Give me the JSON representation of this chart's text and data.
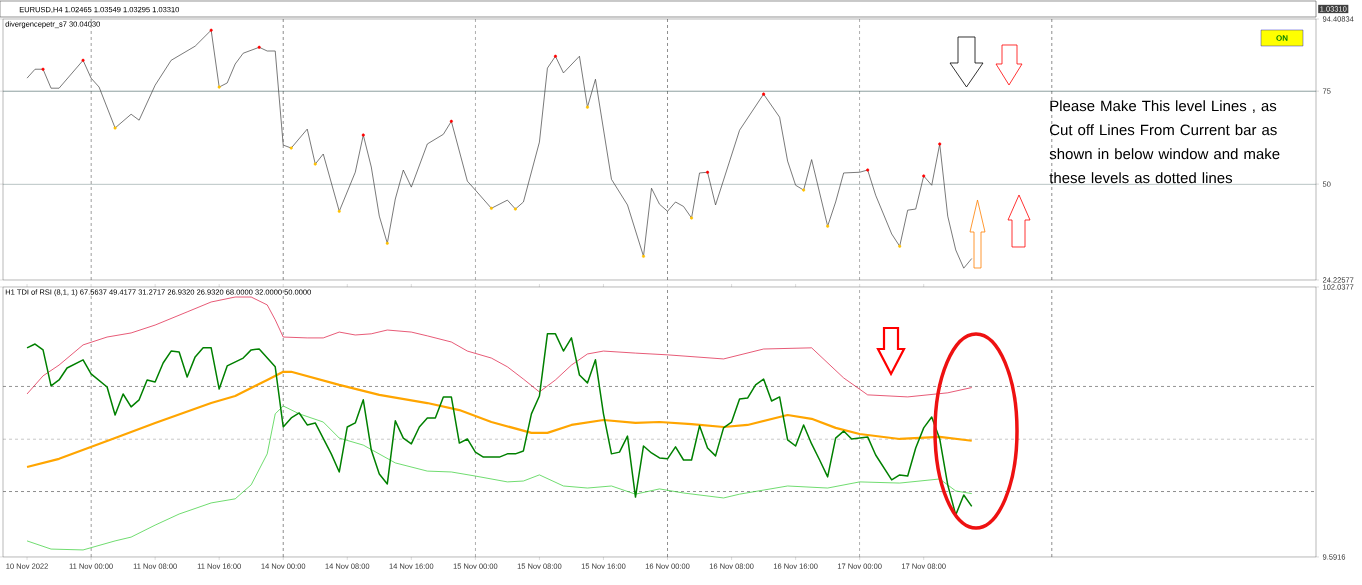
{
  "chart_data": [
    {
      "type": "line",
      "title": "divergencepetr_s7 30.04030",
      "annotations": [
        "EURUSD,H4 1.02465 1.03549 1.03295 1.03310",
        "1.03310",
        "ON",
        "Please Make This level Lines , as Cut off Lines From Current bar as shown in below window and make these levels as dotted lines"
      ],
      "categories": [
        null,
        null,
        null,
        null,
        null,
        null,
        null,
        null,
        null,
        null,
        null,
        null,
        null,
        null,
        null,
        null,
        null,
        null,
        null,
        null,
        null,
        null,
        null,
        null,
        null,
        null,
        null,
        null,
        null,
        null,
        null,
        null,
        null,
        null,
        null,
        null,
        null,
        null,
        null,
        null,
        null,
        null,
        null,
        null,
        null,
        null,
        null,
        null,
        null,
        null,
        null,
        null,
        null,
        null,
        null,
        null,
        null,
        null,
        null,
        null,
        null,
        null,
        null,
        null,
        null,
        null,
        null,
        null,
        null,
        null,
        null,
        null,
        null,
        null,
        null,
        null,
        null,
        null,
        null,
        null,
        null,
        null,
        null,
        null,
        null,
        null,
        null,
        null,
        null,
        null,
        null,
        null,
        null,
        null,
        null,
        null,
        null,
        null,
        null,
        null,
        null,
        null,
        null,
        null,
        null,
        null,
        null,
        null,
        null,
        null,
        null,
        null,
        null,
        null,
        null,
        null,
        null,
        null,
        null
      ],
      "ylim": [
        24.22577,
        94.40834
      ],
      "yticks": [
        24.22577,
        50,
        75,
        94.40834
      ],
      "tick_labels": "y",
      "grid": "x",
      "ref_lines": [
        {
          "axis": "y",
          "value": 75,
          "color": "#2f4f4f",
          "line_style": "solid"
        },
        {
          "axis": "y",
          "value": 50,
          "color": "#2f4f4f",
          "line_style": "solid"
        }
      ],
      "series": [
        {
          "marker": "none",
          "color": "#404040",
          "values": [
            78.5,
            80.9,
            80.9,
            75.8,
            75.8,
            null,
            null,
            83.3,
            78.5,
            76.1,
            null,
            65.1,
            null,
            68.8,
            67.2,
            null,
            76.6,
            null,
            83.3,
            null,
            null,
            87.1,
            null,
            91.4,
            76.1,
            77.2,
            82.3,
            85.2,
            null,
            86.8,
            85.8,
            85.8,
            60.5,
            59.7,
            null,
            64.8,
            55.4,
            58.1,
            null,
            42.7,
            null,
            53.2,
            63.2,
            54.6,
            41.4,
            34.1,
            46.0,
            53.8,
            49.2,
            null,
            60.8,
            null,
            63.4,
            66.9,
            null,
            50.8,
            48.4,
            null,
            43.5,
            null,
            45.7,
            43.3,
            45.2,
            null,
            61.3,
            81.2,
            84.4,
            79.9,
            null,
            84.4,
            70.7,
            78.2,
            null,
            51.3,
            null,
            44.4,
            null,
            30.6,
            48.9,
            44.6,
            42.7,
            45.2,
            44.0,
            40.9,
            53.0,
            53.2,
            44.4,
            null,
            null,
            64.5,
            null,
            null,
            74.2,
            null,
            68.0,
            56.2,
            49.7,
            48.4,
            56.6,
            null,
            38.7,
            45.2,
            53.0,
            null,
            53.2,
            53.8,
            47.0,
            null,
            36.6,
            33.3,
            43.0,
            43.3,
            52.2,
            49.7,
            60.8,
            41.4,
            32.3,
            27.4,
            30.0
          ]
        },
        {
          "type": "scatter",
          "marker": "circle",
          "color": "#ff0000",
          "values": [
            null,
            null,
            80.9,
            null,
            null,
            null,
            null,
            83.3,
            null,
            null,
            null,
            null,
            null,
            null,
            null,
            null,
            null,
            null,
            null,
            null,
            null,
            null,
            null,
            91.4,
            null,
            null,
            null,
            null,
            null,
            86.8,
            null,
            null,
            null,
            null,
            null,
            null,
            null,
            null,
            null,
            null,
            null,
            null,
            63.2,
            null,
            null,
            null,
            null,
            null,
            null,
            null,
            null,
            null,
            null,
            66.9,
            null,
            null,
            null,
            null,
            null,
            null,
            null,
            null,
            null,
            null,
            null,
            null,
            84.4,
            null,
            null,
            null,
            null,
            null,
            null,
            null,
            null,
            null,
            null,
            null,
            null,
            null,
            null,
            null,
            null,
            null,
            null,
            53.2,
            null,
            null,
            null,
            null,
            null,
            null,
            74.2,
            null,
            null,
            null,
            null,
            null,
            null,
            null,
            null,
            null,
            null,
            null,
            null,
            53.8,
            null,
            null,
            null,
            null,
            null,
            null,
            52.2,
            null,
            60.8,
            null,
            null,
            null,
            null
          ]
        },
        {
          "type": "scatter",
          "marker": "circle",
          "color": "#ffc000",
          "values": [
            null,
            null,
            null,
            null,
            null,
            null,
            null,
            null,
            null,
            null,
            null,
            65.1,
            null,
            null,
            null,
            null,
            null,
            null,
            null,
            null,
            null,
            null,
            null,
            null,
            76.1,
            null,
            null,
            null,
            null,
            null,
            null,
            null,
            null,
            59.7,
            null,
            null,
            55.4,
            null,
            null,
            42.7,
            null,
            null,
            null,
            null,
            null,
            34.1,
            null,
            null,
            null,
            null,
            null,
            null,
            null,
            null,
            null,
            null,
            null,
            null,
            43.5,
            null,
            null,
            43.3,
            null,
            null,
            null,
            null,
            null,
            null,
            null,
            null,
            70.7,
            null,
            null,
            null,
            null,
            null,
            null,
            30.6,
            null,
            null,
            null,
            null,
            null,
            40.9,
            null,
            null,
            null,
            null,
            null,
            null,
            null,
            null,
            null,
            null,
            null,
            null,
            null,
            48.4,
            null,
            null,
            38.7,
            null,
            null,
            null,
            null,
            null,
            null,
            null,
            null,
            33.3,
            null,
            null,
            null,
            null,
            null,
            null,
            null,
            null,
            null
          ]
        }
      ]
    },
    {
      "type": "line",
      "title": "H1 TDI of RSI  (8,1, 1) 67.5637 49.4177 31.2717 26.9320 26.9320 68.0000 32.0000 50.0000",
      "categories": [
        "10 Nov 2022",
        null,
        null,
        null,
        null,
        null,
        null,
        null,
        "11 Nov 00:00",
        null,
        null,
        null,
        null,
        null,
        null,
        null,
        "11 Nov 08:00",
        null,
        null,
        null,
        null,
        null,
        null,
        null,
        "11 Nov 16:00",
        null,
        null,
        null,
        null,
        null,
        null,
        null,
        "14 Nov 00:00",
        null,
        null,
        null,
        null,
        null,
        null,
        null,
        "14 Nov 08:00",
        null,
        null,
        null,
        null,
        null,
        null,
        null,
        "14 Nov 16:00",
        null,
        null,
        null,
        null,
        null,
        null,
        null,
        "15 Nov 00:00",
        null,
        null,
        null,
        null,
        null,
        null,
        null,
        "15 Nov 08:00",
        null,
        null,
        null,
        null,
        null,
        null,
        null,
        "15 Nov 16:00",
        null,
        null,
        null,
        null,
        null,
        null,
        null,
        "16 Nov 00:00",
        null,
        null,
        null,
        null,
        null,
        null,
        null,
        "16 Nov 08:00",
        null,
        null,
        null,
        null,
        null,
        null,
        null,
        "16 Nov 16:00",
        null,
        null,
        null,
        null,
        null,
        null,
        null,
        "17 Nov 00:00",
        null,
        null,
        null,
        null,
        null,
        null,
        null,
        "17 Nov 08:00",
        null,
        null,
        null,
        null,
        null,
        null
      ],
      "ylim": [
        9.5916,
        102.0377
      ],
      "yticks": [
        9.5916,
        102.0377
      ],
      "grid": "x",
      "ref_lines": [
        {
          "axis": "y",
          "value": 68,
          "color": "#404040",
          "line_style": "dashed"
        },
        {
          "axis": "y",
          "value": 50,
          "color": "#404040",
          "line_style": "dashed"
        },
        {
          "axis": "y",
          "value": 32,
          "color": "#404040",
          "line_style": "dashed"
        }
      ],
      "series": [
        {
          "marker": "none",
          "color": "#dc143c",
          "values": [
            65.4,
            null,
            71.6,
            null,
            75.3,
            null,
            null,
            82.2,
            null,
            null,
            84.9,
            null,
            null,
            86.3,
            null,
            null,
            89.0,
            null,
            null,
            null,
            93.5,
            null,
            null,
            96.9,
            null,
            null,
            98.6,
            null,
            98.6,
            null,
            95.9,
            90.8,
            84.9,
            null,
            null,
            84.6,
            null,
            84.6,
            null,
            86.6,
            null,
            85.6,
            null,
            86.0,
            null,
            87.3,
            null,
            null,
            86.6,
            null,
            85.3,
            null,
            null,
            83.2,
            null,
            80.1,
            null,
            null,
            77.7,
            null,
            74.7,
            null,
            70.5,
            null,
            66.1,
            null,
            70.2,
            null,
            75.3,
            null,
            79.1,
            null,
            80.1,
            null,
            null,
            null,
            79.4,
            null,
            null,
            null,
            78.8,
            null,
            null,
            null,
            null,
            null,
            null,
            77.4,
            null,
            null,
            null,
            null,
            80.8,
            null,
            null,
            null,
            null,
            null,
            81.2,
            null,
            null,
            null,
            70.9,
            null,
            null,
            65.1,
            null,
            null,
            null,
            null,
            64.4,
            null,
            null,
            null,
            null,
            65.8,
            null,
            null,
            67.6
          ]
        },
        {
          "marker": "none",
          "color": "#ffa500",
          "values": [
            40.4,
            null,
            null,
            null,
            43.2,
            null,
            null,
            null,
            null,
            null,
            null,
            50.3,
            null,
            null,
            null,
            null,
            55.5,
            null,
            null,
            null,
            null,
            null,
            null,
            62.3,
            null,
            null,
            64.7,
            null,
            null,
            null,
            70.2,
            null,
            73.0,
            73.0,
            null,
            null,
            null,
            null,
            null,
            68.5,
            null,
            null,
            null,
            null,
            65.1,
            null,
            null,
            null,
            null,
            null,
            62.3,
            null,
            null,
            null,
            59.9,
            null,
            null,
            null,
            55.8,
            null,
            null,
            null,
            null,
            52.1,
            null,
            52.1,
            null,
            null,
            54.8,
            null,
            null,
            null,
            56.5,
            null,
            null,
            null,
            55.5,
            null,
            null,
            55.8,
            null,
            null,
            null,
            55.1,
            null,
            null,
            null,
            54.1,
            null,
            null,
            54.8,
            null,
            null,
            null,
            null,
            58.2,
            null,
            null,
            56.9,
            null,
            null,
            53.8,
            null,
            null,
            51.7,
            null,
            null,
            null,
            null,
            50.0,
            null,
            null,
            null,
            null,
            50.7,
            null,
            null,
            null,
            49.4
          ]
        },
        {
          "marker": "none",
          "color": "#32cd32",
          "values": [
            15.1,
            null,
            null,
            12.3,
            null,
            null,
            null,
            12.0,
            null,
            null,
            null,
            15.1,
            null,
            16.4,
            null,
            null,
            20.5,
            null,
            null,
            24.3,
            null,
            null,
            null,
            28.1,
            null,
            null,
            29.5,
            null,
            34.3,
            null,
            44.9,
            58.6,
            61.3,
            null,
            58.6,
            null,
            null,
            55.8,
            null,
            50.3,
            null,
            null,
            47.9,
            null,
            null,
            null,
            41.8,
            null,
            null,
            null,
            39.0,
            null,
            null,
            38.7,
            null,
            null,
            37.3,
            null,
            null,
            null,
            35.3,
            null,
            35.6,
            null,
            37.7,
            null,
            null,
            33.9,
            null,
            null,
            33.2,
            null,
            null,
            33.9,
            null,
            null,
            31.1,
            null,
            null,
            32.9,
            null,
            null,
            31.5,
            null,
            null,
            null,
            null,
            29.8,
            null,
            31.1,
            null,
            null,
            null,
            null,
            null,
            33.9,
            null,
            null,
            null,
            null,
            33.2,
            null,
            null,
            null,
            35.3,
            null,
            null,
            null,
            null,
            34.9,
            null,
            null,
            null,
            null,
            36.3,
            null,
            32.2,
            null,
            31.3
          ]
        },
        {
          "marker": "none",
          "color": "#008000",
          "values": [
            81.2,
            82.5,
            80.5,
            68.2,
            70.2,
            74.3,
            null,
            77.1,
            72.3,
            null,
            67.8,
            58.2,
            65.4,
            61.0,
            63.4,
            70.2,
            69.5,
            76.0,
            80.1,
            79.8,
            71.2,
            78.1,
            81.2,
            81.2,
            67.1,
            75.0,
            null,
            77.7,
            80.5,
            80.8,
            null,
            74.7,
            54.1,
            57.2,
            58.9,
            54.8,
            55.5,
            null,
            44.9,
            38.7,
            54.1,
            55.5,
            63.4,
            46.2,
            38.0,
            34.6,
            56.2,
            50.3,
            48.3,
            54.1,
            57.2,
            57.2,
            64.4,
            64.4,
            48.6,
            50.0,
            45.5,
            43.8,
            null,
            43.8,
            44.9,
            44.9,
            45.9,
            58.6,
            64.7,
            86.0,
            86.0,
            80.1,
            84.6,
            71.9,
            69.2,
            77.1,
            58.6,
            44.9,
            45.5,
            51.0,
            30.1,
            47.6,
            45.2,
            43.5,
            43.2,
            47.3,
            42.8,
            42.8,
            54.5,
            46.9,
            44.2,
            53.8,
            55.8,
            63.7,
            64.0,
            68.5,
            70.5,
            63.0,
            64.4,
            49.7,
            47.6,
            54.8,
            48.3,
            42.8,
            37.0,
            50.3,
            52.7,
            50.0,
            null,
            50.7,
            44.5,
            null,
            36.0,
            37.7,
            37.3,
            46.9,
            53.8,
            57.5,
            50.0,
            34.3,
            24.0,
            30.8,
            26.9
          ]
        }
      ]
    }
  ]
}
